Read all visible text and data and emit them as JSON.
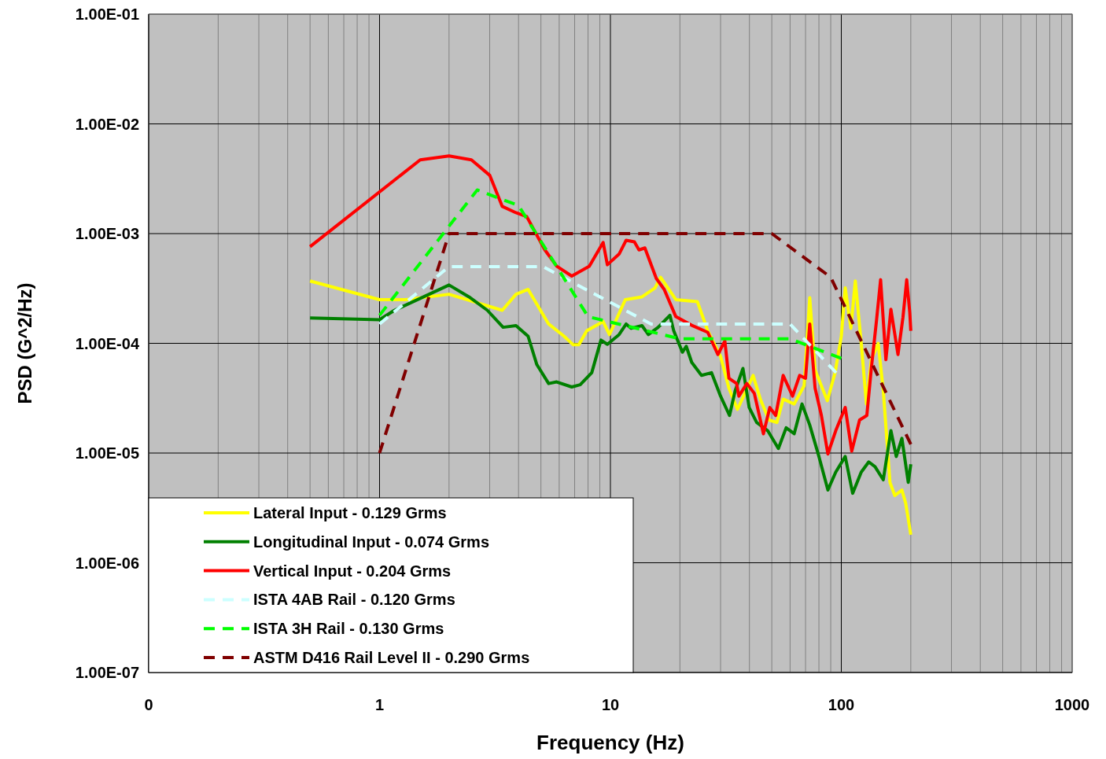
{
  "chart_data": {
    "type": "line",
    "xlabel": "Frequency (Hz)",
    "ylabel": "PSD (G^2/Hz)",
    "log": "xy",
    "grid": true,
    "legend": "bottom left",
    "xlim": [
      0.1,
      1000
    ],
    "ylim": [
      1e-07,
      0.1
    ],
    "xticks": [
      {
        "value": 0.1,
        "label": "0"
      },
      {
        "value": 0.2,
        "label": null
      },
      {
        "value": 0.3,
        "label": null
      },
      {
        "value": 0.4,
        "label": null
      },
      {
        "value": 0.5,
        "label": null
      },
      {
        "value": 0.6,
        "label": null
      },
      {
        "value": 0.7,
        "label": null
      },
      {
        "value": 0.8,
        "label": null
      },
      {
        "value": 0.9,
        "label": null
      },
      1,
      {
        "value": 2,
        "label": null
      },
      {
        "value": 3,
        "label": null
      },
      {
        "value": 4,
        "label": null
      },
      {
        "value": 5,
        "label": null
      },
      {
        "value": 6,
        "label": null
      },
      {
        "value": 7,
        "label": null
      },
      {
        "value": 8,
        "label": null
      },
      {
        "value": 9,
        "label": null
      },
      10,
      {
        "value": 20,
        "label": null
      },
      {
        "value": 30,
        "label": null
      },
      {
        "value": 40,
        "label": null
      },
      {
        "value": 50,
        "label": null
      },
      {
        "value": 60,
        "label": null
      },
      {
        "value": 70,
        "label": null
      },
      {
        "value": 80,
        "label": null
      },
      {
        "value": 90,
        "label": null
      },
      100,
      {
        "value": 200,
        "label": null
      },
      {
        "value": 300,
        "label": null
      },
      {
        "value": 400,
        "label": null
      },
      {
        "value": 500,
        "label": null
      },
      {
        "value": 600,
        "label": null
      },
      {
        "value": 700,
        "label": null
      },
      {
        "value": 800,
        "label": null
      },
      {
        "value": 900,
        "label": null
      },
      1000
    ],
    "yticks": [
      {
        "value": 1e-07,
        "label": "1.00E-07"
      },
      {
        "value": 1e-06,
        "label": "1.00E-06"
      },
      {
        "value": 1e-05,
        "label": "1.00E-05"
      },
      {
        "value": 0.0001,
        "label": "1.00E-04"
      },
      {
        "value": 0.001,
        "label": "1.00E-03"
      },
      {
        "value": 0.01,
        "label": "1.00E-02"
      },
      {
        "value": 0.1,
        "label": "1.00E-01"
      }
    ],
    "series": [
      {
        "name": "Lateral Input - 0.129 Grms",
        "color": "#ffff00",
        "line_style": "solid",
        "x": [
          0.5,
          1,
          1.3,
          2,
          3.4,
          3.9,
          4.4,
          5.4,
          6.3,
          6.9,
          7.3,
          7.9,
          9.3,
          9.9,
          11.6,
          13.7,
          15.6,
          16.5,
          19.2,
          23.8,
          26.4,
          30,
          32.6,
          35.5,
          41.5,
          44.6,
          48.6,
          52.6,
          56,
          62.5,
          69,
          73,
          77,
          87,
          94,
          100,
          104,
          110,
          115,
          122,
          128.5,
          135,
          144.5,
          152,
          162.5,
          170.5,
          183,
          190,
          195,
          200
        ],
        "values": [
          0.00037,
          0.00025,
          0.00025,
          0.00028,
          0.0002,
          0.00028,
          0.00031,
          0.00015,
          0.000116,
          9.7e-05,
          9.7e-05,
          0.00013,
          0.000158,
          0.00012,
          0.00025,
          0.000265,
          0.00032,
          0.0004,
          0.00025,
          0.00024,
          0.00013,
          7.6e-05,
          3.9e-05,
          2.5e-05,
          5.1e-05,
          3.1e-05,
          2e-05,
          1.9e-05,
          3.1e-05,
          2.8e-05,
          4.1e-05,
          0.00026,
          5.7e-05,
          3e-05,
          5.4e-05,
          0.000116,
          0.00032,
          0.000137,
          0.00037,
          0.0001,
          2.8e-05,
          7.1e-05,
          0.0001,
          3.7e-05,
          5.4e-06,
          4.1e-06,
          4.6e-06,
          3.5e-06,
          2.5e-06,
          1.8e-06
        ]
      },
      {
        "name": "Longitudinal Input - 0.074 Grms",
        "color": "#008000",
        "line_style": "solid",
        "x": [
          0.5,
          1,
          1.16,
          2,
          2.44,
          2.93,
          3.43,
          3.9,
          4.4,
          4.8,
          5.4,
          5.85,
          6.8,
          7.4,
          8.3,
          9.1,
          9.7,
          10.9,
          11.7,
          12.3,
          13.7,
          14.6,
          16.1,
          18.1,
          18.8,
          20.5,
          21.3,
          22.5,
          24.8,
          27.4,
          30,
          32.8,
          34.7,
          37.5,
          39.9,
          43,
          48,
          53.4,
          57.7,
          62.5,
          67.6,
          73,
          80,
          87.5,
          94.6,
          104,
          112,
          122,
          131.5,
          140,
          152,
          164,
          173,
          183,
          195,
          200
        ],
        "values": [
          0.00017,
          0.000164,
          0.0002,
          0.00034,
          0.000265,
          0.0002,
          0.00014,
          0.000145,
          0.000116,
          6.4e-05,
          4.3e-05,
          4.45e-05,
          4e-05,
          4.2e-05,
          5.4e-05,
          0.000107,
          9.8e-05,
          0.00012,
          0.00015,
          0.000137,
          0.000145,
          0.00012,
          0.00014,
          0.00018,
          0.00013,
          8.3e-05,
          9.4e-05,
          6.7e-05,
          5.1e-05,
          5.4e-05,
          3.3e-05,
          2.2e-05,
          3.7e-05,
          5.9e-05,
          2.6e-05,
          1.9e-05,
          1.6e-05,
          1.1e-05,
          1.7e-05,
          1.5e-05,
          2.8e-05,
          1.8e-05,
          9.3e-06,
          4.6e-06,
          6.7e-06,
          9.3e-06,
          4.3e-06,
          6.7e-06,
          8.3e-06,
          7.5e-06,
          5.7e-06,
          1.6e-05,
          9.3e-06,
          1.36e-05,
          5.4e-06,
          7.9e-06
        ]
      },
      {
        "name": "Vertical Input - 0.204 Grms",
        "color": "#ff0000",
        "line_style": "solid",
        "x": [
          0.5,
          1.5,
          2,
          2.5,
          3,
          3.4,
          3.9,
          4.34,
          5.2,
          5.85,
          6.8,
          8.1,
          9.3,
          9.7,
          10.9,
          11.7,
          12.7,
          13.3,
          14.1,
          15.8,
          17.1,
          19.2,
          22.5,
          26.4,
          29.2,
          31.3,
          32.6,
          35.2,
          36,
          39,
          42,
          46,
          49,
          52,
          56,
          61.5,
          66,
          70,
          73,
          77,
          82,
          87.5,
          94.6,
          104,
          111,
          120,
          129,
          135,
          142,
          148,
          156,
          164,
          176,
          185,
          192,
          198,
          200
        ],
        "values": [
          0.00076,
          0.0047,
          0.0051,
          0.0047,
          0.0034,
          0.00177,
          0.00155,
          0.00143,
          0.00071,
          0.000505,
          0.00041,
          0.000505,
          0.00083,
          0.00052,
          0.00065,
          0.00087,
          0.00084,
          0.00071,
          0.00074,
          0.00039,
          0.00031,
          0.000175,
          0.000146,
          0.000126,
          7.9e-05,
          0.000105,
          4.8e-05,
          4.3e-05,
          3.3e-05,
          4.3e-05,
          3.5e-05,
          1.5e-05,
          2.6e-05,
          2.2e-05,
          5.1e-05,
          3.3e-05,
          5.1e-05,
          4.8e-05,
          0.00015,
          3.9e-05,
          2.2e-05,
          9.8e-06,
          1.6e-05,
          2.6e-05,
          1.04e-05,
          2e-05,
          2.2e-05,
          6e-05,
          0.00016,
          0.00038,
          7.1e-05,
          0.000204,
          7.9e-05,
          0.000173,
          0.00038,
          0.00019,
          0.00013
        ]
      },
      {
        "name": "ISTA 4AB Rail - 0.120 Grms",
        "color": "#ccffff",
        "line_style": "dashed",
        "x": [
          1,
          2,
          5.1,
          15,
          60,
          95
        ],
        "values": [
          0.00015,
          0.0005,
          0.0005,
          0.00015,
          0.00015,
          5.4e-05
        ]
      },
      {
        "name": "ISTA 3H Rail - 0.130 Grms",
        "color": "#00ff00",
        "line_style": "dashed",
        "x": [
          1,
          2.65,
          4,
          8,
          20,
          60,
          100
        ],
        "values": [
          0.00018,
          0.0025,
          0.0018,
          0.000175,
          0.00011,
          0.00011,
          7.3e-05
        ]
      },
      {
        "name": "ASTM D416 Rail Level II - 0.290 Grms",
        "color": "#800000",
        "line_style": "dashed",
        "x": [
          1,
          2,
          50,
          90,
          200
        ],
        "values": [
          1e-05,
          0.001,
          0.001,
          0.0004,
          1.2e-05
        ]
      }
    ]
  }
}
